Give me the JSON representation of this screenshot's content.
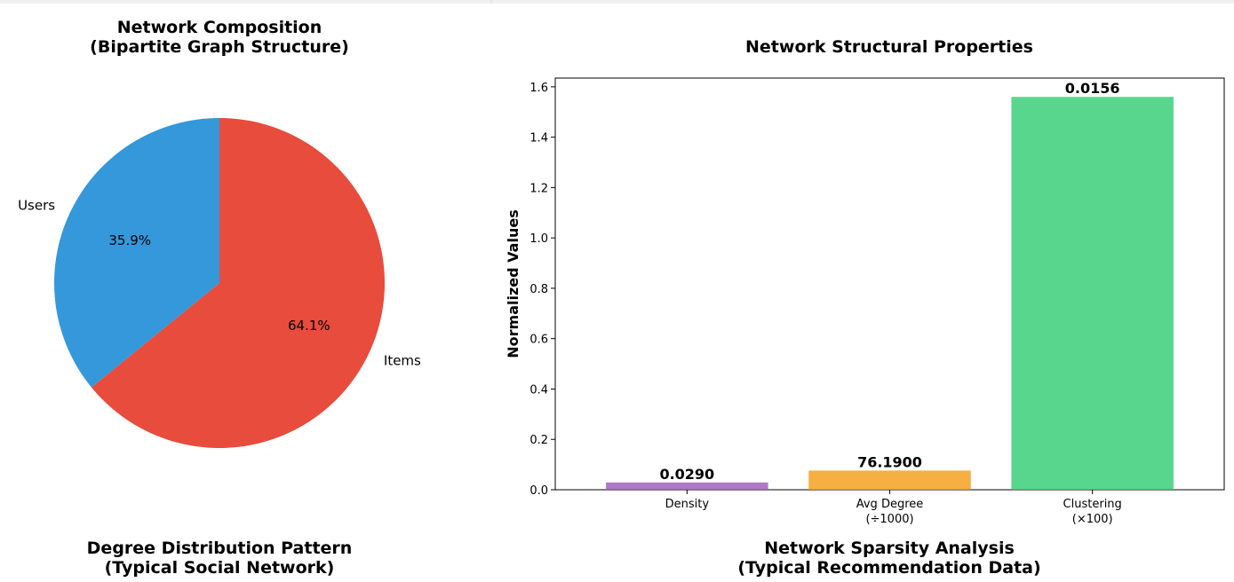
{
  "top_strip_color": "#f0f0f0",
  "chart_data": [
    {
      "type": "pie",
      "title": "Network Composition",
      "subtitle": "(Bipartite Graph Structure)",
      "labels": [
        "Users",
        "Items"
      ],
      "values": [
        35.9,
        64.1
      ],
      "percent_labels": [
        "35.9%",
        "64.1%"
      ],
      "colors": [
        "#3498db",
        "#e74c3c"
      ],
      "start_angle_deg": 90,
      "direction": "counterclockwise"
    },
    {
      "type": "bar",
      "title": "Network Structural Properties",
      "categories": [
        {
          "line1": "Density",
          "line2": ""
        },
        {
          "line1": "Avg Degree",
          "line2": "(÷1000)"
        },
        {
          "line1": "Clustering",
          "line2": "(×100)"
        }
      ],
      "values": [
        0.029,
        0.07619,
        1.56
      ],
      "bar_labels": [
        "0.0290",
        "76.1900",
        "0.0156"
      ],
      "colors": [
        "#9b59b6",
        "#f39c12",
        "#2ecc71"
      ],
      "ylabel": "Normalized Values",
      "ylim": [
        0,
        1.6347
      ],
      "yticks": [
        "0.0",
        "0.2",
        "0.4",
        "0.6",
        "0.8",
        "1.0",
        "1.2",
        "1.4",
        "1.6"
      ],
      "ytick_values": [
        0,
        0.2,
        0.4,
        0.6,
        0.8,
        1.0,
        1.2,
        1.4,
        1.6
      ],
      "grid": false
    }
  ],
  "bottom_titles": [
    {
      "line1": "Degree Distribution Pattern",
      "line2": "(Typical Social Network)"
    },
    {
      "line1": "Network Sparsity Analysis",
      "line2": "(Typical Recommendation Data)"
    }
  ]
}
